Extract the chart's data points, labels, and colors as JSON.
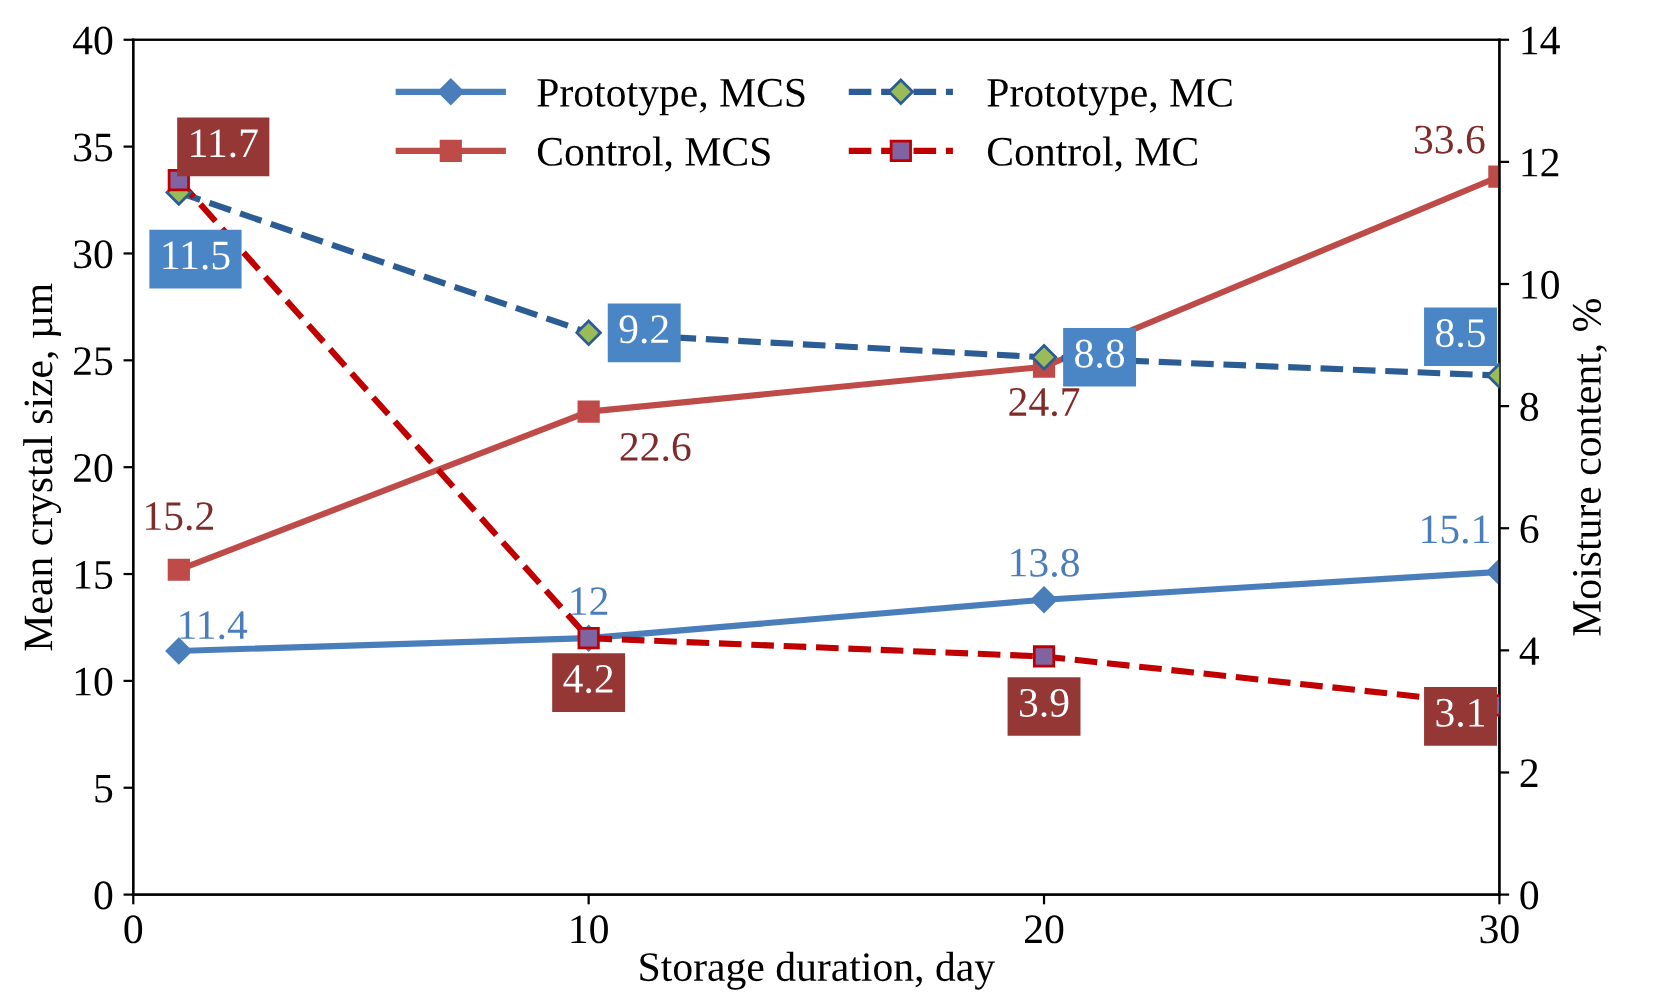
{
  "chart_data": {
    "type": "line",
    "xlabel": "Storage duration, day",
    "ylabel": "Mean crystal size, µm",
    "y2label": "Moisture content, %",
    "x": [
      1,
      10,
      20,
      30
    ],
    "series": [
      {
        "name": "Prototype, MCS",
        "color": "#4a7ebb",
        "values": [
          11.4,
          12,
          13.8,
          15.1
        ],
        "marker": "diamond",
        "line_style": "solid"
      },
      {
        "name": "Control, MCS",
        "color": "#be4b48",
        "values": [
          15.2,
          22.6,
          24.7,
          33.6
        ],
        "marker": "square",
        "line_style": "solid"
      },
      {
        "name": "Prototype, MC",
        "color": "#2c5c94",
        "values": [
          11.5,
          9.2,
          8.8,
          8.5
        ],
        "marker": "diamond",
        "line_style": "dashed",
        "axis": "y2"
      },
      {
        "name": "Control, MC",
        "color": "#c00000",
        "values": [
          11.7,
          4.2,
          3.9,
          3.1
        ],
        "marker": "square",
        "line_style": "dashed",
        "axis": "y2"
      }
    ],
    "xlim": [
      0,
      30
    ],
    "xticks": [
      0,
      10,
      20,
      30
    ],
    "ylim": [
      0,
      40
    ],
    "yticks": [
      0,
      5,
      10,
      15,
      20,
      25,
      30,
      35,
      40
    ],
    "y2lim": [
      0,
      14
    ],
    "y2ticks": [
      0,
      2,
      4,
      6,
      8,
      10,
      12,
      14
    ],
    "data_labels": true,
    "legend": "top",
    "grid": false
  }
}
